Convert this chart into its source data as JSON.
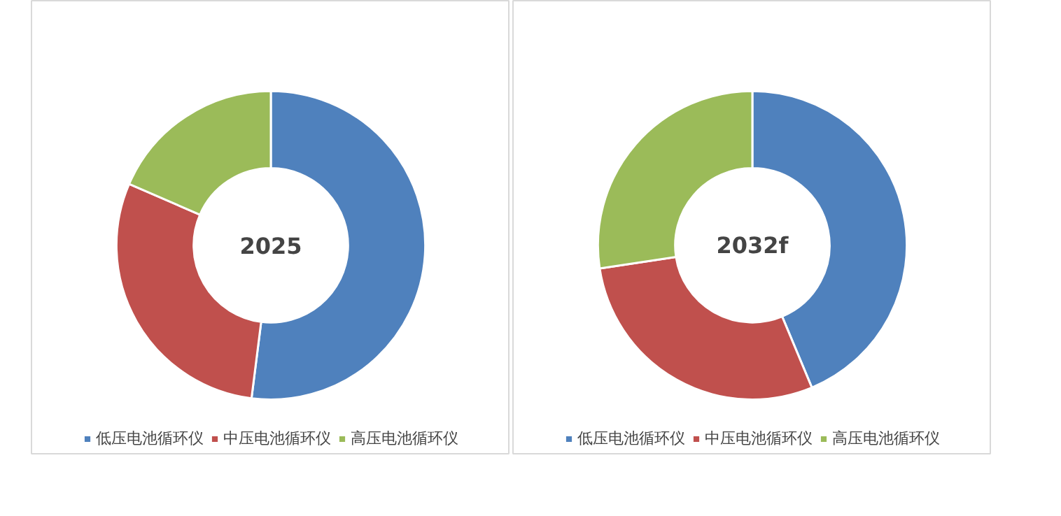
{
  "chart_data": [
    {
      "type": "donut",
      "title": "2025",
      "categories": [
        "低压电池循环仪",
        "中压电池循环仪",
        "高压电池循环仪"
      ],
      "values": [
        52,
        29.5,
        18.5
      ],
      "colors": [
        "#4f81bd",
        "#c0504d",
        "#9bbb59"
      ],
      "legend": "bottom"
    },
    {
      "type": "donut",
      "title": "2032f",
      "categories": [
        "低压电池循环仪",
        "中压电池循环仪",
        "高压电池循环仪"
      ],
      "values": [
        43.7,
        28.9,
        27.4
      ],
      "colors": [
        "#4f81bd",
        "#c0504d",
        "#9bbb59"
      ],
      "legend": "bottom"
    }
  ]
}
